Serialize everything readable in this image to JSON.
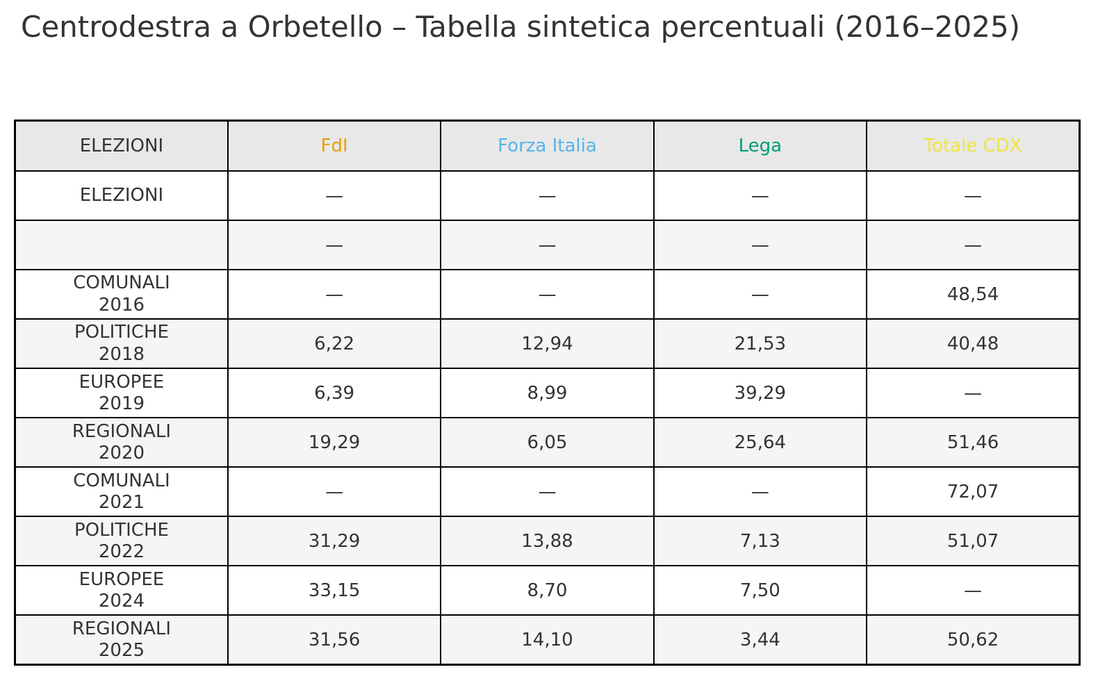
{
  "title": "Centrodestra a Orbetello – Tabella sintetica percentuali (2016–2025)",
  "table": {
    "columns": [
      {
        "label": "ELEZIONI",
        "color": "#333333"
      },
      {
        "label": "FdI",
        "color": "#E69F00"
      },
      {
        "label": "Forza Italia",
        "color": "#56B4E9"
      },
      {
        "label": "Lega",
        "color": "#009E73"
      },
      {
        "label": "Totale CDX",
        "color": "#F0E442"
      }
    ],
    "rows": [
      {
        "label": "ELEZIONI",
        "values": [
          "—",
          "—",
          "—",
          "—"
        ]
      },
      {
        "label": "",
        "values": [
          "—",
          "—",
          "—",
          "—"
        ]
      },
      {
        "label": "COMUNALI\n2016",
        "values": [
          "—",
          "—",
          "—",
          "48,54"
        ]
      },
      {
        "label": "POLITICHE\n2018",
        "values": [
          "6,22",
          "12,94",
          "21,53",
          "40,48"
        ]
      },
      {
        "label": "EUROPEE\n2019",
        "values": [
          "6,39",
          "8,99",
          "39,29",
          "—"
        ]
      },
      {
        "label": "REGIONALI\n2020",
        "values": [
          "19,29",
          "6,05",
          "25,64",
          "51,46"
        ]
      },
      {
        "label": "COMUNALI\n2021",
        "values": [
          "—",
          "—",
          "—",
          "72,07"
        ]
      },
      {
        "label": "POLITICHE\n2022",
        "values": [
          "31,29",
          "13,88",
          "7,13",
          "51,07"
        ]
      },
      {
        "label": "EUROPEE\n2024",
        "values": [
          "33,15",
          "8,70",
          "7,50",
          "—"
        ]
      },
      {
        "label": "REGIONALI\n2025",
        "values": [
          "31,56",
          "14,10",
          "3,44",
          "50,62"
        ]
      }
    ]
  },
  "chart_data": {
    "type": "table",
    "title": "Centrodestra a Orbetello – Tabella sintetica percentuali (2016–2025)",
    "columns": [
      "ELEZIONI",
      "FdI",
      "Forza Italia",
      "Lega",
      "Totale CDX"
    ],
    "column_colors": [
      "#333333",
      "#E69F00",
      "#56B4E9",
      "#009E73",
      "#F0E442"
    ],
    "rows": [
      {
        "election": "ELEZIONI",
        "FdI": null,
        "Forza Italia": null,
        "Lega": null,
        "Totale CDX": null
      },
      {
        "election": "",
        "FdI": null,
        "Forza Italia": null,
        "Lega": null,
        "Totale CDX": null
      },
      {
        "election": "COMUNALI 2016",
        "FdI": null,
        "Forza Italia": null,
        "Lega": null,
        "Totale CDX": 48.54
      },
      {
        "election": "POLITICHE 2018",
        "FdI": 6.22,
        "Forza Italia": 12.94,
        "Lega": 21.53,
        "Totale CDX": 40.48
      },
      {
        "election": "EUROPEE 2019",
        "FdI": 6.39,
        "Forza Italia": 8.99,
        "Lega": 39.29,
        "Totale CDX": null
      },
      {
        "election": "REGIONALI 2020",
        "FdI": 19.29,
        "Forza Italia": 6.05,
        "Lega": 25.64,
        "Totale CDX": 51.46
      },
      {
        "election": "COMUNALI 2021",
        "FdI": null,
        "Forza Italia": null,
        "Lega": null,
        "Totale CDX": 72.07
      },
      {
        "election": "POLITICHE 2022",
        "FdI": 31.29,
        "Forza Italia": 13.88,
        "Lega": 7.13,
        "Totale CDX": 51.07
      },
      {
        "election": "EUROPEE 2024",
        "FdI": 33.15,
        "Forza Italia": 8.7,
        "Lega": 7.5,
        "Totale CDX": null
      },
      {
        "election": "REGIONALI 2025",
        "FdI": 31.56,
        "Forza Italia": 14.1,
        "Lega": 3.44,
        "Totale CDX": 50.62
      }
    ],
    "missing_value_marker": "—",
    "decimal_separator": ","
  }
}
